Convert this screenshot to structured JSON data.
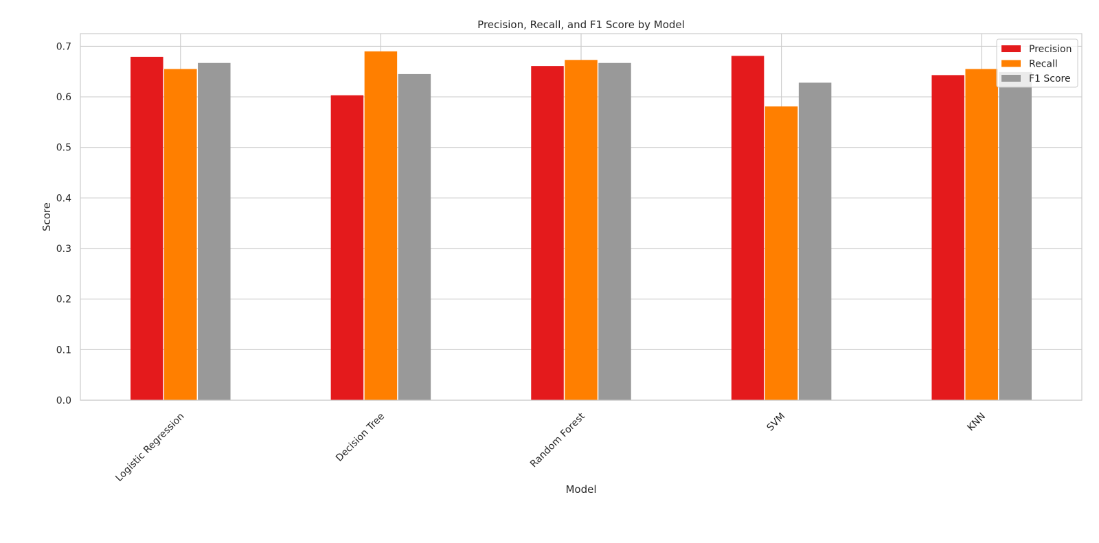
{
  "chart_data": {
    "type": "bar",
    "title": "Precision, Recall, and F1 Score by Model",
    "xlabel": "Model",
    "ylabel": "Score",
    "categories": [
      "Logistic Regression",
      "Decision Tree",
      "Random Forest",
      "SVM",
      "KNN"
    ],
    "series": [
      {
        "name": "Precision",
        "color": "#e41a1c",
        "values": [
          0.679,
          0.603,
          0.661,
          0.681,
          0.643
        ]
      },
      {
        "name": "Recall",
        "color": "#ff7f00",
        "values": [
          0.655,
          0.69,
          0.673,
          0.581,
          0.655
        ]
      },
      {
        "name": "F1 Score",
        "color": "#999999",
        "values": [
          0.667,
          0.645,
          0.667,
          0.628,
          0.649
        ]
      }
    ],
    "ylim": [
      0,
      0.725
    ],
    "yticks": [
      "0.0",
      "0.1",
      "0.2",
      "0.3",
      "0.4",
      "0.5",
      "0.6",
      "0.7"
    ],
    "grid": true,
    "legend": "top-right"
  }
}
